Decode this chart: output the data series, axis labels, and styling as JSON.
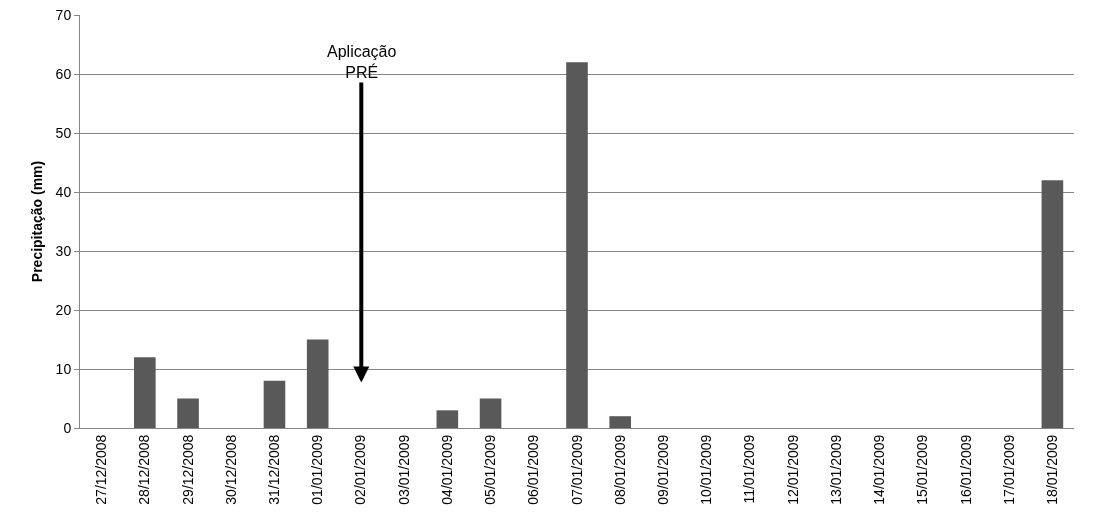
{
  "chart_data": {
    "type": "bar",
    "ylabel": "Precipitação (mm)",
    "categories": [
      "27/12/2008",
      "28/12/2008",
      "29/12/2008",
      "30/12/2008",
      "31/12/2008",
      "01/01/2009",
      "02/01/2009",
      "03/01/2009",
      "04/01/2009",
      "05/01/2009",
      "06/01/2009",
      "07/01/2009",
      "08/01/2009",
      "09/01/2009",
      "10/01/2009",
      "11/01/2009",
      "12/01/2009",
      "13/01/2009",
      "14/01/2009",
      "15/01/2009",
      "16/01/2009",
      "17/01/2009",
      "18/01/2009"
    ],
    "values": [
      0,
      12,
      5,
      0,
      8,
      15,
      0,
      0,
      3,
      5,
      0,
      62,
      2,
      0,
      0,
      0,
      0,
      0,
      0,
      0,
      0,
      0,
      42
    ],
    "color": "#595959",
    "ylim": [
      0,
      70
    ],
    "yticks": [
      0,
      10,
      20,
      30,
      40,
      50,
      60,
      70
    ],
    "grid": "y",
    "annotations": [
      "Aplicação\nPRÉ"
    ]
  }
}
